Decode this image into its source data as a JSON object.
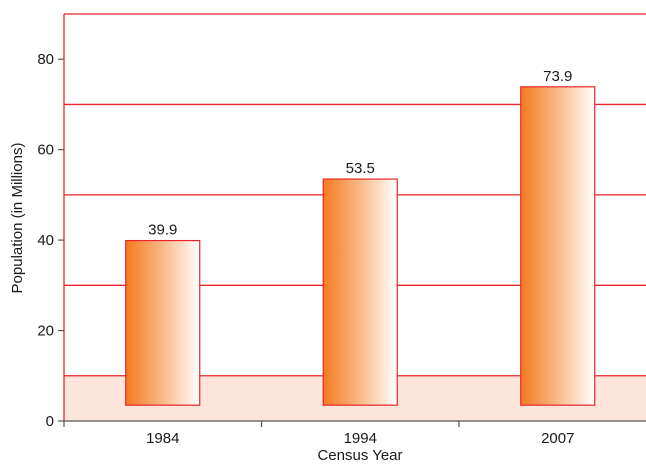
{
  "chart_data": {
    "type": "bar",
    "title": "",
    "xlabel": "Census Year",
    "ylabel": "Population (in Millions)",
    "categories": [
      "1984",
      "1994",
      "2007"
    ],
    "values": [
      39.9,
      53.5,
      73.9
    ],
    "value_labels": [
      "39.9",
      "53.5",
      "73.9"
    ],
    "ylim": [
      0,
      90
    ],
    "y_ticks": [
      0,
      20,
      40,
      60,
      80
    ],
    "y_tick_labels": [
      "0",
      "20",
      "40",
      "60",
      "80"
    ],
    "grid": true,
    "gridlines": [
      10,
      30,
      50,
      70,
      90
    ],
    "bar_baseline": 3.5,
    "legend": "none",
    "colors": {
      "bar_dark": "#f47a20",
      "bar_mid": "#f9b37d",
      "bar_light": "#ffffff",
      "bar_outline": "#e8252a",
      "grid": "#e8252a",
      "floor_fill": "#fde5dc",
      "axis": "#555555"
    }
  }
}
